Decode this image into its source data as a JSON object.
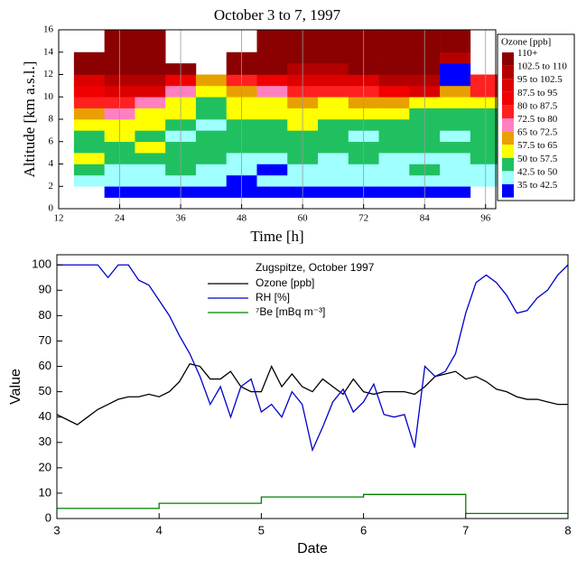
{
  "chart_data": [
    {
      "type": "heatmap",
      "title": "October 3 to 7, 1997",
      "x_label": "Time [h]",
      "y_label": "Altitude [km a.s.l.]",
      "xlim": [
        12,
        98
      ],
      "xticks": [
        12,
        24,
        36,
        48,
        60,
        72,
        84,
        96
      ],
      "ylim": [
        0,
        16
      ],
      "yticks": [
        0,
        2,
        4,
        6,
        8,
        10,
        12,
        14,
        16
      ],
      "grid": true,
      "x_edges": [
        15,
        21,
        27,
        33,
        39,
        45,
        51,
        57,
        63,
        69,
        75,
        81,
        87,
        93,
        99
      ],
      "y_edges": [
        0,
        1,
        2,
        3,
        4,
        5,
        6,
        7,
        8,
        9,
        10,
        11,
        12,
        13,
        14,
        15,
        16
      ],
      "z": [
        [
          null,
          null,
          46,
          54,
          61,
          54,
          54,
          61,
          69,
          84,
          91,
          99,
          115,
          115,
          null,
          null
        ],
        [
          null,
          39,
          46,
          46,
          54,
          54,
          61,
          61,
          76,
          84,
          99,
          106,
          115,
          115,
          115,
          115
        ],
        [
          null,
          39,
          46,
          46,
          54,
          61,
          54,
          61,
          61,
          76,
          99,
          106,
          115,
          115,
          115,
          115
        ],
        [
          null,
          39,
          46,
          54,
          54,
          54,
          46,
          54,
          61,
          61,
          76,
          91,
          115,
          null,
          null,
          null
        ],
        [
          null,
          39,
          46,
          46,
          54,
          54,
          54,
          46,
          54,
          54,
          61,
          69,
          null,
          null,
          null,
          null
        ],
        [
          null,
          39,
          39,
          46,
          46,
          54,
          54,
          54,
          61,
          61,
          69,
          84,
          115,
          115,
          null,
          null
        ],
        [
          null,
          39,
          46,
          39,
          46,
          54,
          54,
          54,
          61,
          61,
          76,
          91,
          115,
          115,
          115,
          115
        ],
        [
          null,
          39,
          46,
          46,
          54,
          54,
          54,
          61,
          61,
          69,
          84,
          99,
          106,
          115,
          115,
          115
        ],
        [
          null,
          39,
          46,
          46,
          46,
          54,
          54,
          54,
          61,
          61,
          84,
          99,
          106,
          115,
          115,
          115
        ],
        [
          null,
          39,
          46,
          46,
          54,
          54,
          46,
          54,
          61,
          69,
          84,
          99,
          115,
          115,
          115,
          115
        ],
        [
          null,
          39,
          46,
          46,
          46,
          54,
          54,
          54,
          61,
          69,
          91,
          106,
          115,
          115,
          115,
          115
        ],
        [
          null,
          39,
          46,
          54,
          46,
          54,
          54,
          54,
          54,
          61,
          99,
          106,
          115,
          115,
          115,
          115
        ],
        [
          null,
          39,
          46,
          46,
          46,
          54,
          46,
          54,
          54,
          61,
          69,
          39,
          39,
          106,
          115,
          115
        ],
        [
          null,
          null,
          46,
          46,
          54,
          54,
          54,
          54,
          54,
          61,
          84,
          84,
          null,
          null,
          null,
          null
        ]
      ],
      "legend": {
        "title": "Ozone [ppb]",
        "classes": [
          {
            "label": "110+",
            "min": 110,
            "color": "#8b0000"
          },
          {
            "label": "102.5 to 110",
            "min": 102.5,
            "color": "#b40000"
          },
          {
            "label": "95 to 102.5",
            "min": 95,
            "color": "#dc0000"
          },
          {
            "label": "87.5 to 95",
            "min": 87.5,
            "color": "#f00000"
          },
          {
            "label": "80 to 87.5",
            "min": 80,
            "color": "#ff2020"
          },
          {
            "label": "72.5 to 80",
            "min": 72.5,
            "color": "#ff80c0"
          },
          {
            "label": "65 to 72.5",
            "min": 65,
            "color": "#e8a000"
          },
          {
            "label": "57.5 to 65",
            "min": 57.5,
            "color": "#ffff00"
          },
          {
            "label": "50 to 57.5",
            "min": 50,
            "color": "#20c060"
          },
          {
            "label": "42.5 to 50",
            "min": 42.5,
            "color": "#a0ffff"
          },
          {
            "label": "35 to 42.5",
            "min": 35,
            "color": "#0000ff"
          }
        ]
      }
    },
    {
      "type": "line",
      "x_label": "Date",
      "y_label": "Value",
      "legend_title": "Zugspitze, October 1997",
      "xlim": [
        3,
        8
      ],
      "xticks": [
        3,
        4,
        5,
        6,
        7,
        8
      ],
      "ylim": [
        0,
        104
      ],
      "yticks": [
        0,
        10,
        20,
        30,
        40,
        50,
        60,
        70,
        80,
        90,
        100
      ],
      "legend_position": "top",
      "series": [
        {
          "name": "Ozone [ppb]",
          "color": "#000000",
          "x": [
            3.0,
            3.1,
            3.2,
            3.3,
            3.4,
            3.5,
            3.6,
            3.7,
            3.8,
            3.9,
            4.0,
            4.1,
            4.2,
            4.3,
            4.4,
            4.5,
            4.6,
            4.7,
            4.8,
            4.9,
            5.0,
            5.1,
            5.2,
            5.3,
            5.4,
            5.5,
            5.6,
            5.7,
            5.8,
            5.9,
            6.0,
            6.1,
            6.2,
            6.3,
            6.4,
            6.5,
            6.6,
            6.7,
            6.8,
            6.9,
            7.0,
            7.1,
            7.2,
            7.3,
            7.4,
            7.5,
            7.6,
            7.7,
            7.8,
            7.9,
            8.0
          ],
          "values": [
            41,
            39,
            37,
            40,
            43,
            45,
            47,
            48,
            48,
            49,
            48,
            50,
            54,
            61,
            60,
            55,
            55,
            58,
            52,
            50,
            50,
            60,
            52,
            57,
            52,
            50,
            55,
            52,
            49,
            55,
            50,
            49,
            50,
            50,
            50,
            49,
            52,
            56,
            57,
            58,
            55,
            56,
            54,
            51,
            50,
            48,
            47,
            47,
            46,
            45,
            45
          ]
        },
        {
          "name": "RH [%]",
          "color": "#0000cc",
          "x": [
            3.0,
            3.1,
            3.2,
            3.3,
            3.4,
            3.5,
            3.6,
            3.7,
            3.8,
            3.9,
            4.0,
            4.1,
            4.2,
            4.3,
            4.4,
            4.5,
            4.6,
            4.7,
            4.8,
            4.9,
            5.0,
            5.1,
            5.2,
            5.3,
            5.4,
            5.5,
            5.6,
            5.7,
            5.8,
            5.9,
            6.0,
            6.1,
            6.2,
            6.3,
            6.4,
            6.5,
            6.6,
            6.7,
            6.8,
            6.9,
            7.0,
            7.1,
            7.2,
            7.3,
            7.4,
            7.5,
            7.6,
            7.7,
            7.8,
            7.9,
            8.0
          ],
          "values": [
            100,
            100,
            100,
            100,
            100,
            95,
            100,
            100,
            94,
            92,
            86,
            80,
            72,
            65,
            56,
            45,
            52,
            40,
            52,
            55,
            42,
            45,
            40,
            50,
            45,
            27,
            36,
            46,
            51,
            42,
            46,
            53,
            41,
            40,
            41,
            28,
            60,
            56,
            58,
            65,
            81,
            93,
            96,
            93,
            88,
            81,
            82,
            87,
            90,
            96,
            100
          ]
        },
        {
          "name": "⁷Be [mBq m⁻³]",
          "color": "#008000",
          "x": [
            3,
            4,
            4,
            5,
            5,
            6,
            6,
            7,
            7,
            8
          ],
          "values": [
            4,
            4,
            6,
            6,
            8.5,
            8.5,
            9.5,
            9.5,
            2,
            2
          ]
        }
      ]
    }
  ]
}
